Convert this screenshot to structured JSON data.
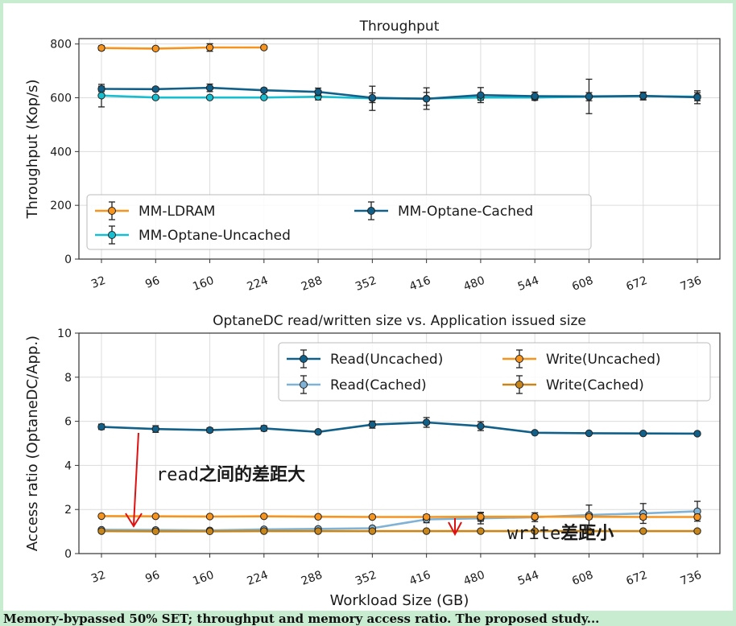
{
  "chart_data": [
    {
      "type": "line",
      "title": "Throughput",
      "xlabel": "",
      "ylabel": "Throughput (Kop/s)",
      "ylim": [
        0,
        820
      ],
      "yticks": [
        0,
        200,
        400,
        600,
        800
      ],
      "categories": [
        "32",
        "96",
        "160",
        "224",
        "288",
        "352",
        "416",
        "480",
        "544",
        "608",
        "672",
        "736"
      ],
      "grid": true,
      "legend": "lower-left",
      "series": [
        {
          "name": "MM-LDRAM",
          "color": "#f7941d",
          "values": [
            785,
            783,
            787,
            787,
            null,
            null,
            null,
            null,
            null,
            null,
            null,
            null
          ],
          "err": [
            8,
            6,
            14,
            6,
            0,
            0,
            0,
            0,
            0,
            0,
            0,
            0
          ]
        },
        {
          "name": "MM-Optane-Uncached",
          "color": "#17becf",
          "values": [
            608,
            601,
            601,
            601,
            604,
            598,
            597,
            601,
            601,
            604,
            606,
            604
          ],
          "err": [
            42,
            6,
            5,
            5,
            12,
            45,
            40,
            10,
            10,
            15,
            14,
            15
          ]
        },
        {
          "name": "MM-Optane-Cached",
          "color": "#116089",
          "values": [
            633,
            632,
            637,
            628,
            622,
            600,
            596,
            610,
            606,
            605,
            607,
            602
          ],
          "err": [
            10,
            7,
            14,
            8,
            14,
            18,
            24,
            28,
            15,
            64,
            14,
            24
          ]
        }
      ]
    },
    {
      "type": "line",
      "title": "OptaneDC read/written size vs. Application issued size",
      "xlabel": "Workload Size (GB)",
      "ylabel": "Access ratio (OptaneDC/App.)",
      "ylim": [
        0,
        10
      ],
      "yticks": [
        0,
        2,
        4,
        6,
        8,
        10
      ],
      "categories": [
        "32",
        "96",
        "160",
        "224",
        "288",
        "352",
        "416",
        "480",
        "544",
        "608",
        "672",
        "736"
      ],
      "grid": true,
      "legend": "upper-right",
      "series": [
        {
          "name": "Read(Uncached)",
          "color": "#116089",
          "values": [
            5.75,
            5.65,
            5.6,
            5.68,
            5.52,
            5.85,
            5.95,
            5.78,
            5.48,
            5.46,
            5.45,
            5.44
          ],
          "err": [
            0.12,
            0.15,
            0.1,
            0.12,
            0.06,
            0.16,
            0.22,
            0.2,
            0.05,
            0.05,
            0.05,
            0.05
          ]
        },
        {
          "name": "Read(Cached)",
          "color": "#7fb2d5",
          "values": [
            1.08,
            1.07,
            1.05,
            1.1,
            1.12,
            1.15,
            1.55,
            1.6,
            1.65,
            1.75,
            1.82,
            1.92
          ],
          "err": [
            0.05,
            0.05,
            0.05,
            0.05,
            0.05,
            0.05,
            0.15,
            0.25,
            0.2,
            0.45,
            0.45,
            0.45
          ]
        },
        {
          "name": "Write(Uncached)",
          "color": "#f7941d",
          "values": [
            1.7,
            1.69,
            1.68,
            1.69,
            1.67,
            1.66,
            1.66,
            1.67,
            1.67,
            1.67,
            1.66,
            1.66
          ],
          "err": [
            0.06,
            0.05,
            0.04,
            0.05,
            0.04,
            0.04,
            0.1,
            0.2,
            0.1,
            0.1,
            0.1,
            0.1
          ]
        },
        {
          "name": "Write(Cached)",
          "color": "#c8861a",
          "values": [
            1.02,
            1.01,
            1.01,
            1.02,
            1.02,
            1.02,
            1.02,
            1.02,
            1.02,
            1.02,
            1.02,
            1.02
          ],
          "err": [
            0.04,
            0.04,
            0.04,
            0.04,
            0.04,
            0.04,
            0.04,
            0.04,
            0.04,
            0.04,
            0.04,
            0.04
          ]
        }
      ],
      "annotations": [
        {
          "prefix": "read",
          "suffix": "之间的差距大",
          "color": "#e01010"
        },
        {
          "prefix": "write",
          "suffix": "差距小",
          "color": "#e01010"
        }
      ]
    }
  ],
  "caption": "Memory-bypassed 50% SET; throughput and memory access ratio. The proposed study..."
}
